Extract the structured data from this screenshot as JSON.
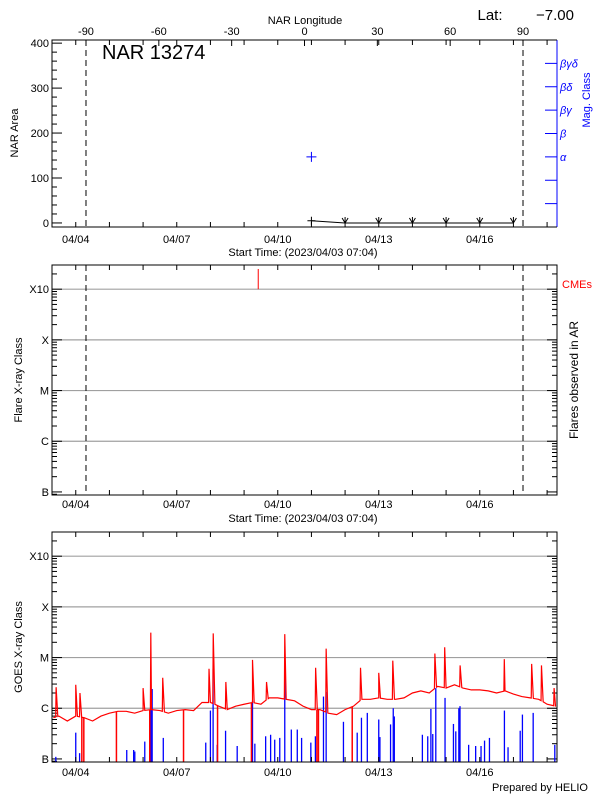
{
  "chart_data": [
    {
      "type": "scatter",
      "panel": "nar-area",
      "title": "NAR 13274",
      "latitude_label": "Lat:",
      "latitude_value": "−7.00",
      "top_axis_label": "NAR Longitude",
      "top_axis_ticks": [
        "-90",
        "-60",
        "-30",
        "0",
        "30",
        "60",
        "90"
      ],
      "top_axis_range": [
        -104,
        104
      ],
      "limb_longitudes": [
        -90,
        90
      ],
      "ylabel": "NAR Area",
      "ylim": [
        -9,
        407
      ],
      "yticks": [
        "0",
        "100",
        "200",
        "300",
        "400"
      ],
      "right_axis_label": "Mag. Class",
      "right_axis_ticks": [
        "",
        "",
        "α",
        "β",
        "βγ",
        "βδ",
        "βγδ"
      ],
      "xlabel": "Start Time: (2023/04/03 07:04)",
      "xticks": [
        "04/04",
        "04/07",
        "04/10",
        "04/13",
        "04/16"
      ],
      "xrange": [
        "04/03 07:04",
        "04/18 07:04"
      ],
      "area_series": [
        {
          "date": "04/11 00:00",
          "area": 5,
          "marker": "plus"
        },
        {
          "date": "04/12 00:00",
          "area": 0,
          "marker": "down-arrow"
        },
        {
          "date": "04/13 00:00",
          "area": 0,
          "marker": "down-arrow"
        },
        {
          "date": "04/14 00:00",
          "area": 0,
          "marker": "down-arrow"
        },
        {
          "date": "04/15 00:00",
          "area": 0,
          "marker": "down-arrow"
        },
        {
          "date": "04/16 00:00",
          "area": 0,
          "marker": "down-arrow"
        },
        {
          "date": "04/17 00:00",
          "area": 0,
          "marker": "down-arrow"
        }
      ],
      "mag_class_series": [
        {
          "date": "04/11 00:00",
          "class": "α"
        }
      ],
      "colors": {
        "area": "#000000",
        "mag_class": "#0000ff"
      }
    },
    {
      "type": "scatter",
      "panel": "flares-in-ar",
      "ylabel": "Flare X-ray Class",
      "right_axis_label": "Flares observed in AR",
      "cme_label": "CMEs",
      "yticks": [
        "B",
        "C",
        "M",
        "X",
        "X10"
      ],
      "ylim": [
        "B0.87",
        "X30"
      ],
      "grid": true,
      "xlabel": "Start Time: (2023/04/03 07:04)",
      "xticks": [
        "04/04",
        "04/07",
        "04/10",
        "04/13",
        "04/16"
      ],
      "xrange": [
        "04/03 07:04",
        "04/18 07:04"
      ],
      "limb_longitudes": [
        -90,
        90
      ],
      "flares": [],
      "cmes": [
        "04/09 10:05"
      ],
      "colors": {
        "cme": "#ff0000",
        "grid": "#a0a0a0"
      }
    },
    {
      "type": "line",
      "panel": "goes-xray",
      "ylabel": "GOES X-ray Class",
      "yticks": [
        "B",
        "C",
        "M",
        "X",
        "X10"
      ],
      "ylim": [
        "B0.87",
        "X30"
      ],
      "grid": true,
      "xticks": [
        "04/04",
        "04/07",
        "04/10",
        "04/13",
        "04/16"
      ],
      "xrange": [
        "04/03 07:04",
        "04/18 07:04"
      ],
      "footer": "Prepared by HELIO",
      "colors": {
        "goes": "#ff0000",
        "events": "#0000ff",
        "grid": "#a0a0a0"
      },
      "goes_background": [
        [
          "04/03 08:00",
          "B6.5"
        ],
        [
          "04/03 12:00",
          "B7.0"
        ],
        [
          "04/03 18:00",
          "B5.6"
        ],
        [
          "04/04 00:00",
          "B7.0"
        ],
        [
          "04/04 06:00",
          "B6.5"
        ],
        [
          "04/04 12:00",
          "B5.6"
        ],
        [
          "04/04 18:00",
          "B7.0"
        ],
        [
          "04/05 00:00",
          "B8.0"
        ],
        [
          "04/05 06:00",
          "B8.7"
        ],
        [
          "04/05 12:00",
          "B8.7"
        ],
        [
          "04/05 18:00",
          "B8.0"
        ],
        [
          "04/06 00:00",
          "B9.0"
        ],
        [
          "04/06 06:00",
          "B9.4"
        ],
        [
          "04/06 12:00",
          "B9.0"
        ],
        [
          "04/06 18:00",
          "B8.0"
        ],
        [
          "04/07 00:00",
          "B9.0"
        ],
        [
          "04/07 06:00",
          "B9.4"
        ],
        [
          "04/07 12:00",
          "B9.0"
        ],
        [
          "04/07 18:00",
          "C1.3"
        ],
        [
          "04/08 00:00",
          "C1.3"
        ],
        [
          "04/08 06:00",
          "C1.1"
        ],
        [
          "04/08 12:00",
          "B9.4"
        ],
        [
          "04/08 18:00",
          "C1.1"
        ],
        [
          "04/09 00:00",
          "C1.2"
        ],
        [
          "04/09 06:00",
          "C1.3"
        ],
        [
          "04/09 12:00",
          "C1.2"
        ],
        [
          "04/09 18:00",
          "C1.6"
        ],
        [
          "04/10 00:00",
          "C1.6"
        ],
        [
          "04/10 06:00",
          "C1.5"
        ],
        [
          "04/10 12:00",
          "C1.4"
        ],
        [
          "04/10 18:00",
          "C1.1"
        ],
        [
          "04/11 00:00",
          "B9.4"
        ],
        [
          "04/11 06:00",
          "B9.4"
        ],
        [
          "04/11 12:00",
          "B8.0"
        ],
        [
          "04/11 18:00",
          "B7.5"
        ],
        [
          "04/12 00:00",
          "B9.4"
        ],
        [
          "04/12 06:00",
          "C1.1"
        ],
        [
          "04/12 12:00",
          "C1.5"
        ],
        [
          "04/12 18:00",
          "C1.5"
        ],
        [
          "04/13 00:00",
          "C1.6"
        ],
        [
          "04/13 06:00",
          "C1.5"
        ],
        [
          "04/13 12:00",
          "C1.5"
        ],
        [
          "04/13 18:00",
          "C1.6"
        ],
        [
          "04/14 00:00",
          "C2.0"
        ],
        [
          "04/14 06:00",
          "C2.2"
        ],
        [
          "04/14 12:00",
          "C2.0"
        ],
        [
          "04/14 18:00",
          "C2.7"
        ],
        [
          "04/15 00:00",
          "C2.5"
        ],
        [
          "04/15 06:00",
          "C2.9"
        ],
        [
          "04/15 12:00",
          "C2.5"
        ],
        [
          "04/15 18:00",
          "C2.3"
        ],
        [
          "04/16 00:00",
          "C2.3"
        ],
        [
          "04/16 06:00",
          "C2.2"
        ],
        [
          "04/16 12:00",
          "C2.0"
        ],
        [
          "04/16 18:00",
          "C2.2"
        ],
        [
          "04/17 00:00",
          "C1.9"
        ],
        [
          "04/17 06:00",
          "C1.7"
        ],
        [
          "04/17 12:00",
          "C1.6"
        ],
        [
          "04/17 18:00",
          "C1.5"
        ],
        [
          "04/18 00:00",
          "C1.2"
        ],
        [
          "04/18 06:00",
          "C1.1"
        ]
      ],
      "goes_peaks": [
        [
          "04/03 10:00",
          "C2.6"
        ],
        [
          "04/04 00:00",
          "C2.9"
        ],
        [
          "04/04 03:00",
          "C2.0"
        ],
        [
          "04/06 00:00",
          "C2.5"
        ],
        [
          "04/06 05:30",
          "M3.1"
        ],
        [
          "04/06 14:00",
          "C4.0"
        ],
        [
          "04/07 23:00",
          "C6.0"
        ],
        [
          "04/08 02:00",
          "M3.0"
        ],
        [
          "04/08 11:00",
          "C3.3"
        ],
        [
          "04/09 06:00",
          "C9.0"
        ],
        [
          "04/09 16:00",
          "C3.3"
        ],
        [
          "04/10 05:00",
          "M2.9"
        ],
        [
          "04/11 03:00",
          "C6.3"
        ],
        [
          "04/11 10:30",
          "M1.5"
        ],
        [
          "04/12 11:00",
          "C6.3"
        ],
        [
          "04/13 00:00",
          "C5.0"
        ],
        [
          "04/13 10:00",
          "C8.7"
        ],
        [
          "04/14 16:00",
          "M1.2"
        ],
        [
          "04/14 23:00",
          "M1.6"
        ],
        [
          "04/15 10:00",
          "C7.0"
        ],
        [
          "04/16 17:30",
          "C9.3"
        ],
        [
          "04/17 13:00",
          "C7.5"
        ],
        [
          "04/17 20:00",
          "C7.0"
        ],
        [
          "04/18 05:00",
          "C2.5"
        ]
      ],
      "goes_dropouts": [
        "04/04 04:20",
        "04/04 05:45",
        "04/05 05:00",
        "04/06 04:45",
        "04/07 04:50",
        "04/08 05:05",
        "04/09 05:15",
        "04/11 03:55",
        "04/11 05:00",
        "04/12 05:05"
      ],
      "events": [
        [
          "04/03 09:47",
          "B1.1"
        ],
        [
          "04/04 00:00",
          "B3.3"
        ],
        [
          "04/04 02:44",
          "B1.3"
        ],
        [
          "04/05 12:21",
          "B1.5"
        ],
        [
          "04/05 17:17",
          "B1.5"
        ],
        [
          "04/05 18:06",
          "B1.4"
        ],
        [
          "04/06 01:12",
          "B2.2"
        ],
        [
          "04/06 05:31",
          "C5.9"
        ],
        [
          "04/06 06:28",
          "C2.4"
        ],
        [
          "04/06 14:24",
          "B2.6"
        ],
        [
          "04/07 20:40",
          "B2.1"
        ],
        [
          "04/08 00:00",
          "B9.0"
        ],
        [
          "04/08 01:55",
          "C6.0"
        ],
        [
          "04/08 04:50",
          "B1.9"
        ],
        [
          "04/08 10:48",
          "B3.6"
        ],
        [
          "04/08 19:05",
          "B1.8"
        ],
        [
          "04/09 06:00",
          "C1.4"
        ],
        [
          "04/09 07:41",
          "B2.0"
        ],
        [
          "04/09 15:22",
          "B2.8"
        ],
        [
          "04/09 18:55",
          "B3.0"
        ],
        [
          "04/09 21:50",
          "B2.4"
        ],
        [
          "04/10 01:26",
          "B2.6"
        ],
        [
          "04/10 05:00",
          "C6.3"
        ],
        [
          "04/10 09:40",
          "B3.8"
        ],
        [
          "04/10 13:55",
          "B3.8"
        ],
        [
          "04/10 17:00",
          "B2.6"
        ],
        [
          "04/10 23:35",
          "B2.1"
        ],
        [
          "04/11 02:50",
          "B2.8"
        ],
        [
          "04/11 08:36",
          "C1.7"
        ],
        [
          "04/11 10:30",
          "C2.1"
        ],
        [
          "04/11 22:50",
          "B5.4"
        ],
        [
          "04/12 08:38",
          "B3.3"
        ],
        [
          "04/12 11:40",
          "B6.5"
        ],
        [
          "04/12 15:50",
          "B8.1"
        ],
        [
          "04/13 00:00",
          "B6.0"
        ],
        [
          "04/13 00:50",
          "B2.7"
        ],
        [
          "04/13 08:25",
          "B4.8"
        ],
        [
          "04/13 10:20",
          "C1.0"
        ],
        [
          "04/13 11:05",
          "B6.9"
        ],
        [
          "04/14 07:06",
          "B3.0"
        ],
        [
          "04/14 10:55",
          "B2.8"
        ],
        [
          "04/14 13:10",
          "B9.7"
        ],
        [
          "04/14 14:30",
          "B3.1"
        ],
        [
          "04/14 16:40",
          "C2.5"
        ],
        [
          "04/14 23:15",
          "C1.6"
        ],
        [
          "04/15 05:15",
          "B4.9"
        ],
        [
          "04/15 06:55",
          "B3.5"
        ],
        [
          "04/15 09:05",
          "C1.0"
        ],
        [
          "04/15 09:55",
          "C1.1"
        ],
        [
          "04/15 16:05",
          "B1.9"
        ],
        [
          "04/15 21:05",
          "B1.8"
        ],
        [
          "04/16 00:55",
          "B1.8"
        ],
        [
          "04/16 03:25",
          "B2.3"
        ],
        [
          "04/16 06:55",
          "B2.6"
        ],
        [
          "04/16 17:35",
          "B9.0"
        ],
        [
          "04/16 20:10",
          "B1.7"
        ],
        [
          "04/17 04:50",
          "B3.6"
        ],
        [
          "04/17 06:25",
          "B7.5"
        ],
        [
          "04/17 14:05",
          "B8.1"
        ],
        [
          "04/18 05:30",
          "B1.9"
        ]
      ]
    }
  ]
}
